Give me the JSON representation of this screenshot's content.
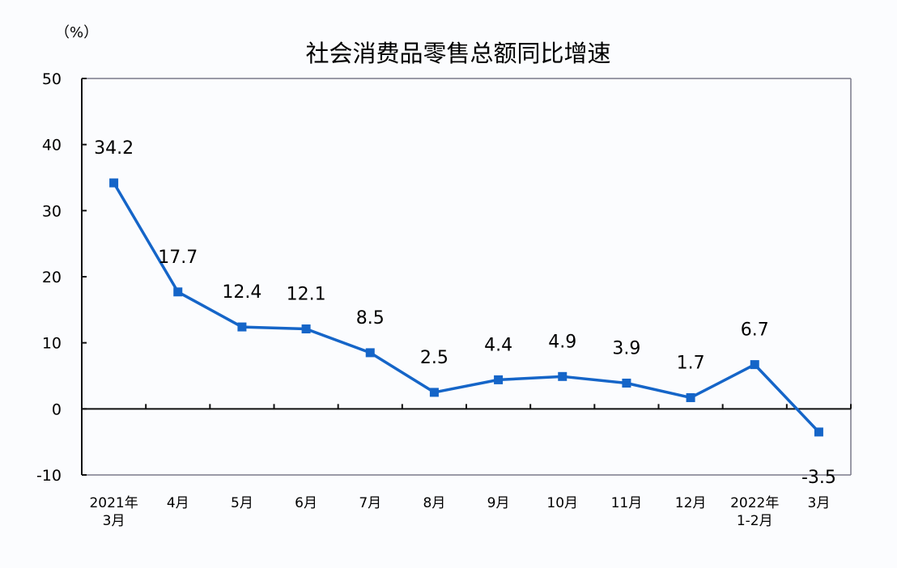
{
  "chart_data": {
    "type": "line",
    "title": "社会消费品零售总额同比增速",
    "unit_label": "（%）",
    "xlabel": "",
    "ylabel": "%",
    "ylim": [
      -10,
      50
    ],
    "yticks": [
      -10,
      0,
      10,
      20,
      30,
      40,
      50
    ],
    "grid": false,
    "legend": null,
    "categories": [
      [
        "2021年",
        "3月"
      ],
      [
        "4月"
      ],
      [
        "5月"
      ],
      [
        "6月"
      ],
      [
        "7月"
      ],
      [
        "8月"
      ],
      [
        "9月"
      ],
      [
        "10月"
      ],
      [
        "11月"
      ],
      [
        "12月"
      ],
      [
        "2022年",
        "1-2月"
      ],
      [
        "3月"
      ]
    ],
    "series": [
      {
        "name": "社会消费品零售总额同比增速",
        "values": [
          34.2,
          17.7,
          12.4,
          12.1,
          8.5,
          2.5,
          4.4,
          4.9,
          3.9,
          1.7,
          6.7,
          -3.5
        ],
        "labels": [
          "34.2",
          "17.7",
          "12.4",
          "12.1",
          "8.5",
          "2.5",
          "4.4",
          "4.9",
          "3.9",
          "1.7",
          "6.7",
          "-3.5"
        ],
        "color": "#1565c8"
      }
    ]
  }
}
